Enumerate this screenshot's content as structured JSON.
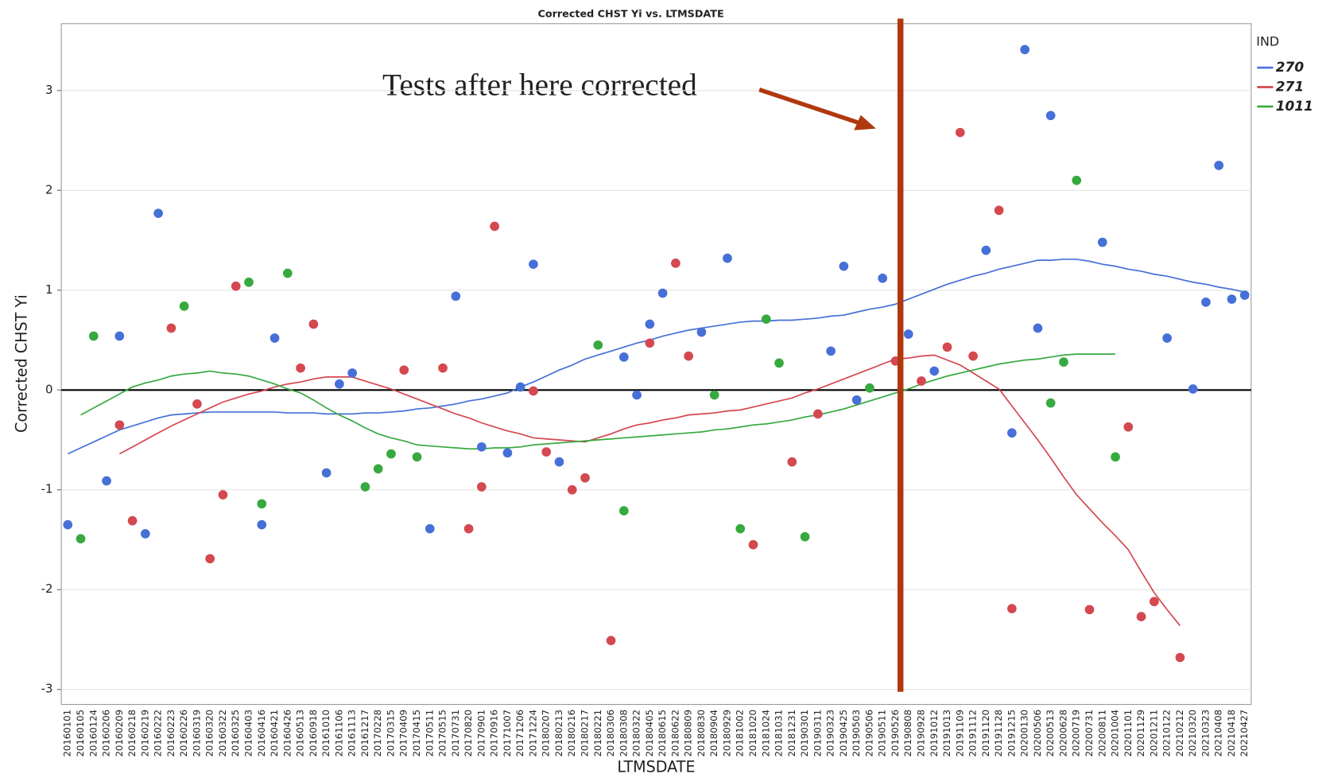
{
  "chart_data": {
    "type": "scatter",
    "title": "Corrected CHST Yi vs. LTMSDATE",
    "x_label": "LTMSDATE",
    "y_label": "Corrected CHST Yi",
    "annotation": "Tests after here corrected",
    "legend_title": "IND",
    "legend_position": "right",
    "grid": true,
    "hline": 0,
    "ylim": [
      -3.15,
      3.67
    ],
    "yticks": [
      -3,
      -2,
      -1,
      0,
      1,
      2,
      3
    ],
    "categories": [
      "20160101",
      "20160105",
      "20160124",
      "20160206",
      "20160209",
      "20160218",
      "20160219",
      "20160222",
      "20160223",
      "20160226",
      "20160319",
      "20160320",
      "20160322",
      "20160325",
      "20160403",
      "20160416",
      "20160421",
      "20160426",
      "20160513",
      "20160918",
      "20161010",
      "20161106",
      "20161113",
      "20161217",
      "20170228",
      "20170315",
      "20170409",
      "20170415",
      "20170511",
      "20170515",
      "20170731",
      "20170820",
      "20170901",
      "20170916",
      "20171007",
      "20171206",
      "20171224",
      "20180207",
      "20180213",
      "20180216",
      "20180217",
      "20180221",
      "20180306",
      "20180308",
      "20180322",
      "20180405",
      "20180615",
      "20180622",
      "20180809",
      "20180830",
      "20180904",
      "20180929",
      "20181002",
      "20181020",
      "20181024",
      "20181031",
      "20181231",
      "20190301",
      "20190311",
      "20190323",
      "20190425",
      "20190503",
      "20190506",
      "20190511",
      "20190526",
      "20190808",
      "20190928",
      "20191012",
      "20191013",
      "20191109",
      "20191112",
      "20191120",
      "20191128",
      "20191215",
      "20200130",
      "20200506",
      "20200513",
      "20200628",
      "20200719",
      "20200731",
      "20200811",
      "20201004",
      "20201101",
      "20201129",
      "20201211",
      "20210122",
      "20210212",
      "20210320",
      "20210323",
      "20210408",
      "20210418",
      "20210427"
    ],
    "series": [
      {
        "name": "270",
        "color": "#4670d8",
        "values": [
          -1.35,
          null,
          null,
          -0.91,
          0.54,
          null,
          -1.44,
          1.77,
          null,
          null,
          null,
          null,
          null,
          null,
          null,
          -1.35,
          0.52,
          null,
          null,
          null,
          -0.83,
          0.06,
          0.17,
          null,
          null,
          null,
          null,
          null,
          -1.39,
          null,
          0.94,
          null,
          -0.57,
          null,
          -0.63,
          0.03,
          1.26,
          null,
          -0.72,
          null,
          null,
          null,
          null,
          0.33,
          -0.05,
          0.66,
          0.97,
          null,
          null,
          0.58,
          null,
          1.32,
          null,
          null,
          null,
          null,
          null,
          null,
          null,
          0.39,
          1.24,
          -0.1,
          null,
          1.12,
          null,
          0.56,
          null,
          0.19,
          null,
          null,
          null,
          1.4,
          null,
          -0.43,
          3.41,
          0.62,
          2.75,
          null,
          null,
          null,
          1.48,
          null,
          null,
          null,
          null,
          0.52,
          null,
          0.01,
          0.88,
          2.25,
          0.91,
          0.95
        ],
        "fit_values": [
          -0.64,
          -0.58,
          -0.52,
          -0.46,
          -0.4,
          -0.36,
          -0.32,
          -0.28,
          -0.25,
          -0.24,
          -0.23,
          -0.22,
          -0.22,
          -0.22,
          -0.22,
          -0.22,
          -0.22,
          -0.23,
          -0.23,
          -0.23,
          -0.24,
          -0.24,
          -0.24,
          -0.23,
          -0.23,
          -0.22,
          -0.21,
          -0.19,
          -0.18,
          -0.16,
          -0.14,
          -0.11,
          -0.09,
          -0.06,
          -0.03,
          0.03,
          0.08,
          0.14,
          0.2,
          0.25,
          0.31,
          0.35,
          0.39,
          0.43,
          0.47,
          0.5,
          0.54,
          0.57,
          0.6,
          0.62,
          0.64,
          0.66,
          0.68,
          0.69,
          0.69,
          0.7,
          0.7,
          0.71,
          0.72,
          0.74,
          0.75,
          0.78,
          0.81,
          0.83,
          0.86,
          0.91,
          0.96,
          1.01,
          1.06,
          1.1,
          1.14,
          1.17,
          1.21,
          1.24,
          1.27,
          1.3,
          1.3,
          1.31,
          1.31,
          1.29,
          1.26,
          1.24,
          1.21,
          1.19,
          1.16,
          1.14,
          1.11,
          1.08,
          1.06,
          1.03,
          1.01,
          0.98
        ]
      },
      {
        "name": "271",
        "color": "#d4484f",
        "values": [
          null,
          null,
          null,
          null,
          -0.35,
          -1.31,
          null,
          null,
          0.62,
          null,
          -0.14,
          -1.69,
          -1.05,
          1.04,
          null,
          null,
          null,
          null,
          0.22,
          0.66,
          null,
          null,
          null,
          null,
          null,
          null,
          0.2,
          null,
          null,
          0.22,
          null,
          -1.39,
          -0.97,
          1.64,
          null,
          null,
          -0.01,
          -0.62,
          null,
          -1.0,
          -0.88,
          null,
          -2.51,
          null,
          null,
          0.47,
          null,
          1.27,
          0.34,
          null,
          null,
          null,
          null,
          -1.55,
          null,
          null,
          -0.72,
          null,
          -0.24,
          null,
          null,
          null,
          null,
          null,
          0.29,
          null,
          0.09,
          null,
          0.43,
          2.58,
          0.34,
          null,
          1.8,
          -2.19,
          null,
          null,
          null,
          null,
          null,
          -2.2,
          null,
          null,
          -0.37,
          -2.27,
          -2.12,
          null,
          -2.68,
          null,
          null,
          null,
          null,
          null
        ],
        "fit_values": [
          null,
          null,
          null,
          null,
          -0.64,
          -0.57,
          -0.5,
          -0.43,
          -0.36,
          -0.3,
          -0.24,
          -0.18,
          -0.12,
          -0.08,
          -0.04,
          -0.01,
          0.03,
          0.06,
          0.08,
          0.11,
          0.13,
          0.13,
          0.13,
          0.09,
          0.05,
          0.01,
          -0.04,
          -0.09,
          -0.14,
          -0.19,
          -0.24,
          -0.28,
          -0.33,
          -0.37,
          -0.41,
          -0.44,
          -0.48,
          -0.49,
          -0.5,
          -0.51,
          -0.52,
          -0.48,
          -0.44,
          -0.39,
          -0.35,
          -0.33,
          -0.3,
          -0.28,
          -0.25,
          -0.24,
          -0.23,
          -0.21,
          -0.2,
          -0.17,
          -0.14,
          -0.11,
          -0.08,
          -0.03,
          0.01,
          0.06,
          0.11,
          0.16,
          0.21,
          0.26,
          0.31,
          0.32,
          0.34,
          0.35,
          0.3,
          0.25,
          0.17,
          0.09,
          0.01,
          -0.16,
          -0.33,
          -0.5,
          -0.68,
          -0.87,
          -1.05,
          -1.19,
          -1.33,
          -1.46,
          -1.6,
          -1.82,
          -2.03,
          -2.2,
          -2.36,
          null,
          null,
          null,
          null,
          null
        ]
      },
      {
        "name": "1011",
        "color": "#37a93f",
        "values": [
          null,
          -1.49,
          0.54,
          null,
          null,
          null,
          null,
          null,
          null,
          0.84,
          null,
          null,
          null,
          null,
          1.08,
          -1.14,
          null,
          1.17,
          null,
          null,
          null,
          null,
          null,
          -0.97,
          -0.79,
          -0.64,
          null,
          -0.67,
          null,
          null,
          null,
          null,
          null,
          null,
          null,
          null,
          null,
          null,
          null,
          null,
          null,
          0.45,
          null,
          -1.21,
          null,
          null,
          null,
          null,
          null,
          null,
          -0.05,
          null,
          -1.39,
          null,
          0.71,
          0.27,
          null,
          -1.47,
          null,
          null,
          null,
          null,
          0.02,
          null,
          null,
          null,
          null,
          null,
          null,
          null,
          null,
          null,
          null,
          null,
          null,
          null,
          -0.13,
          0.28,
          2.1,
          null,
          null,
          -0.67,
          null,
          null,
          null,
          null,
          null,
          null,
          null,
          null,
          null,
          null
        ],
        "fit_values": [
          null,
          -0.25,
          -0.18,
          -0.11,
          -0.04,
          0.03,
          0.07,
          0.1,
          0.14,
          0.16,
          0.17,
          0.19,
          0.17,
          0.16,
          0.14,
          0.1,
          0.06,
          0.01,
          -0.03,
          -0.1,
          -0.18,
          -0.25,
          -0.31,
          -0.38,
          -0.44,
          -0.48,
          -0.51,
          -0.55,
          -0.56,
          -0.57,
          -0.58,
          -0.59,
          -0.59,
          -0.58,
          -0.58,
          -0.57,
          -0.55,
          -0.54,
          -0.53,
          -0.52,
          -0.51,
          -0.5,
          -0.49,
          -0.48,
          -0.47,
          -0.46,
          -0.45,
          -0.44,
          -0.43,
          -0.42,
          -0.4,
          -0.39,
          -0.37,
          -0.35,
          -0.34,
          -0.32,
          -0.3,
          -0.27,
          -0.25,
          -0.22,
          -0.19,
          -0.15,
          -0.11,
          -0.07,
          -0.03,
          0.01,
          0.06,
          0.1,
          0.14,
          0.17,
          0.2,
          0.23,
          0.26,
          0.28,
          0.3,
          0.31,
          0.33,
          0.35,
          0.36,
          0.36,
          0.36,
          0.36,
          null,
          null,
          null,
          null,
          null,
          null,
          null,
          null,
          null,
          null
        ]
      }
    ]
  }
}
